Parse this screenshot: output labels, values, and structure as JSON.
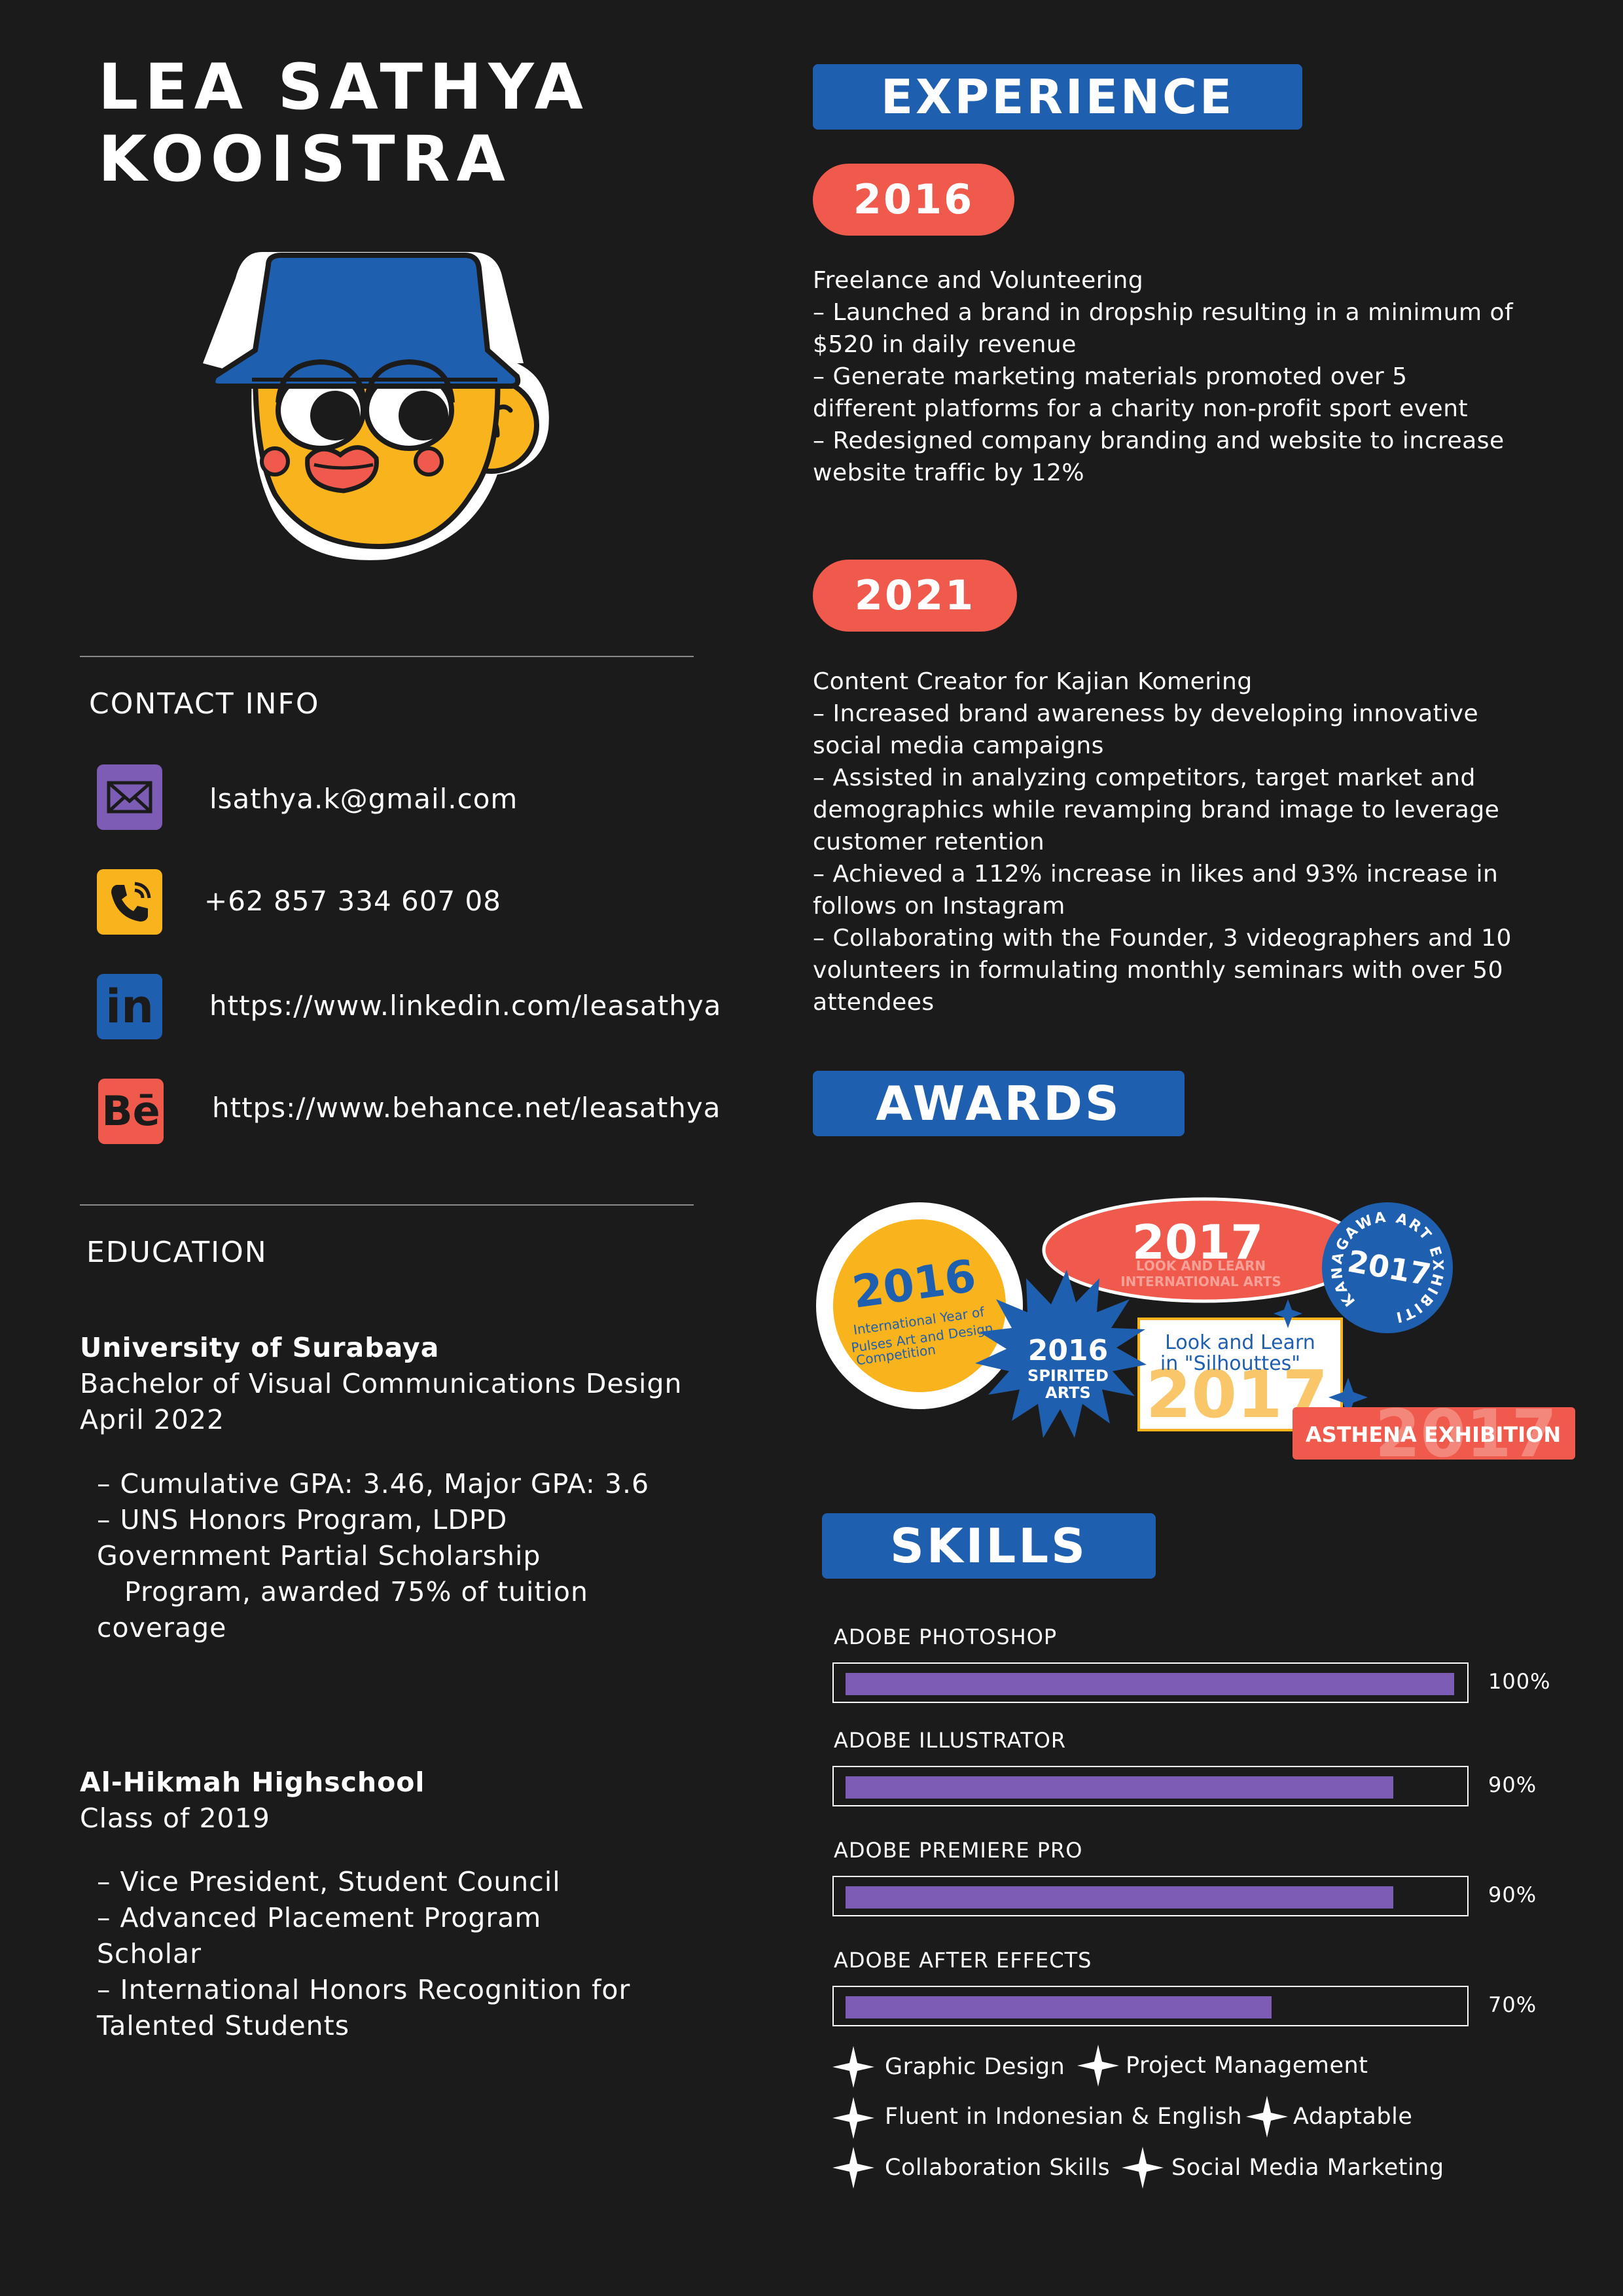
{
  "name": {
    "line1": "LEA SATHYA",
    "line2": "KOOISTRA"
  },
  "contact": {
    "title": "CONTACT INFO",
    "email": "lsathya.k@gmail.com",
    "phone": "+62 857 334 607 08",
    "linkedin": "https://www.linkedin.com/leasathya",
    "behance": "https://www.behance.net/leasathya",
    "linkedin_icon_text": "in",
    "behance_icon_text": "Bē"
  },
  "education": {
    "title": "EDUCATION",
    "items": [
      {
        "school": "University of Surabaya",
        "degree": "Bachelor of Visual Communications Design",
        "date": "April 2022",
        "bullets": [
          "– Cumulative GPA: 3.46, Major GPA: 3.6",
          "– UNS Honors Program, LDPD",
          "Government Partial Scholarship",
          "Program, awarded 75% of tuition",
          "coverage"
        ]
      },
      {
        "school": "Al-Hikmah Highschool",
        "degree": "Class of 2019",
        "bullets": [
          "– Vice President, Student Council",
          "– Advanced Placement Program",
          "Scholar",
          "– International Honors Recognition for",
          "Talented Students"
        ]
      }
    ]
  },
  "experience": {
    "title": "EXPERIENCE",
    "entries": [
      {
        "year": "2016",
        "lines": [
          "Freelance and Volunteering",
          "– Launched a brand in dropship resulting in a minimum of",
          "$520 in daily revenue",
          "– Generate marketing materials promoted over 5",
          "different platforms for a charity non-profit sport event",
          "– Redesigned company branding and website to increase",
          "website traffic by 12%"
        ]
      },
      {
        "year": "2021",
        "lines": [
          "Content Creator for Kajian Komering",
          "– Increased brand awareness by developing innovative",
          "social media campaigns",
          "– Assisted in analyzing competitors, target market and",
          "demographics while revamping brand image to leverage",
          "customer retention",
          "– Achieved a 112% increase in likes and 93% increase in",
          "follows on Instagram",
          "– Collaborating with the Founder, 3 videographers and 10",
          "volunteers in formulating monthly seminars with over 50",
          "attendees"
        ]
      }
    ]
  },
  "awards": {
    "title": "AWARDS",
    "badges": {
      "yellow_year": "2016",
      "yellow_l1": "International Year of",
      "yellow_l2": "Pulses Art and Design",
      "yellow_l3": "Competition",
      "red_year": "2017",
      "red_l1": "LOOK AND LEARN",
      "red_l2": "INTERNATIONAL ARTS",
      "kanagawa_year": "2017",
      "kanagawa_ring": "KANAGAWA ART EXHIBITION",
      "spirited_year": "2016",
      "spirited_l1": "SPIRITED",
      "spirited_l2": "ARTS",
      "look_l1": "Look and Learn",
      "look_l2": "in \"Silhouttes\"",
      "look_year": "2017",
      "asthena_label": "ASTHENA EXHIBITION",
      "asthena_year": "2017"
    }
  },
  "skills": {
    "title": "SKILLS",
    "bars": [
      {
        "label": "ADOBE PHOTOSHOP",
        "value": 100,
        "pct": "100%"
      },
      {
        "label": "ADOBE ILLUSTRATOR",
        "value": 90,
        "pct": "90%"
      },
      {
        "label": "ADOBE PREMIERE PRO",
        "value": 90,
        "pct": "90%"
      },
      {
        "label": "ADOBE AFTER EFFECTS",
        "value": 70,
        "pct": "70%"
      }
    ],
    "soft": [
      "Graphic Design",
      "Project Management",
      "Fluent in Indonesian & English",
      "Adaptable",
      "Collaboration Skills",
      "Social Media Marketing"
    ]
  },
  "colors": {
    "background": "#1b1b1b",
    "banner_blue": "#1f5fb0",
    "pill_red": "#ef5a4d",
    "skill_purple": "#7d5cb5",
    "yellow": "#f9b31c"
  }
}
